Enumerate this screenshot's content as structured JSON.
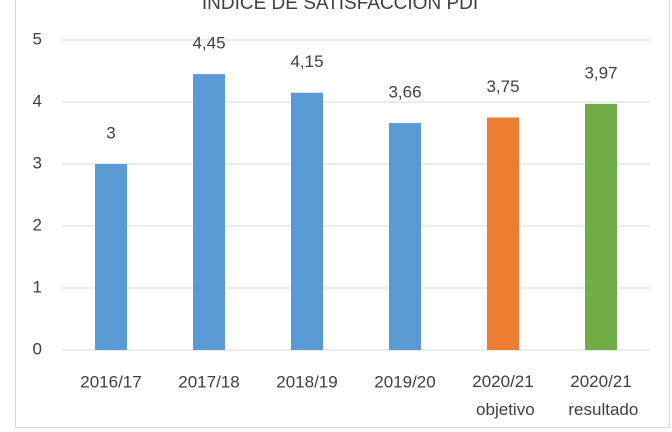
{
  "chart_data": {
    "type": "bar",
    "title": "ÍNDICE DE SATISFACCIÓN PDI",
    "categories": [
      "2016/17",
      "2017/18",
      "2018/19",
      "2019/20",
      "2020/21 objetivo",
      "2020/21 resultado"
    ],
    "values": [
      3,
      4.45,
      4.15,
      3.66,
      3.75,
      3.97
    ],
    "value_labels": [
      "3",
      "4,45",
      "4,15",
      "3,66",
      "3,75",
      "3,97"
    ],
    "colors": [
      "#5b9bd5",
      "#5b9bd5",
      "#5b9bd5",
      "#5b9bd5",
      "#ed7d31",
      "#70ad47"
    ],
    "ylim": [
      0,
      5
    ],
    "yticks": [
      0,
      1,
      2,
      3,
      4,
      5
    ],
    "grid": true
  }
}
